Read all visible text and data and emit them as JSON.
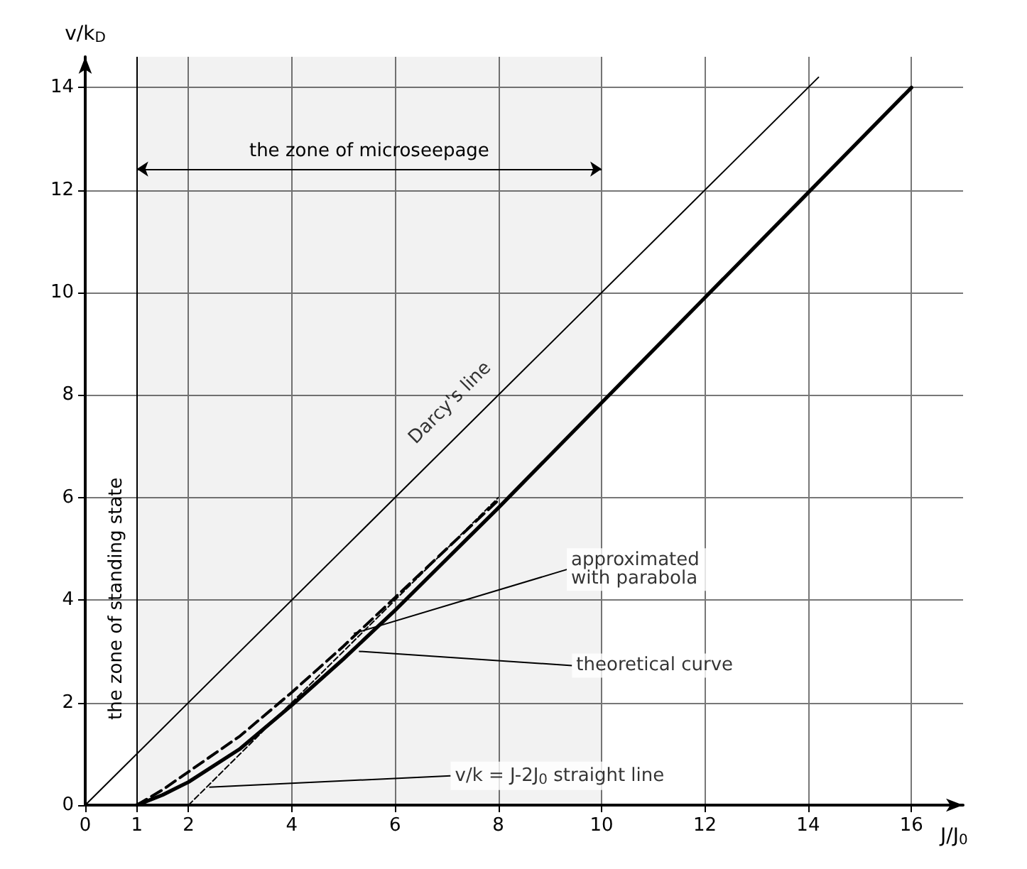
{
  "chart_data": {
    "type": "line",
    "xlabel": "J/J$_{0}$",
    "ylabel": "v/k$_{D}$",
    "xlim": [
      0,
      17
    ],
    "ylim": [
      0,
      14.6
    ],
    "xticks": [
      0,
      1,
      2,
      4,
      6,
      8,
      10,
      12,
      14,
      16
    ],
    "yticks": [
      0,
      2,
      4,
      6,
      8,
      10,
      12,
      14
    ],
    "grid": true,
    "marker": "none",
    "series": [
      {
        "color": "#000000",
        "line_style": "solid",
        "x": [
          0,
          14.2
        ],
        "values": [
          0,
          14.2
        ]
      },
      {
        "color": "#000000",
        "line_style": "dashed",
        "x": [
          2,
          3,
          4,
          5,
          6,
          7,
          8
        ],
        "values": [
          0,
          1,
          2,
          3,
          4,
          5,
          6
        ]
      },
      {
        "color": "#000000",
        "line_style": "solid",
        "x": [
          1,
          1.5,
          2,
          3,
          4,
          5,
          6,
          7,
          8,
          10,
          12,
          14,
          16
        ],
        "values": [
          0,
          0.2,
          0.45,
          1.1,
          1.95,
          2.85,
          3.8,
          4.8,
          5.8,
          7.85,
          9.9,
          11.95,
          14
        ]
      },
      {
        "color": "#000000",
        "line_style": "dashed",
        "x": [
          1,
          1.5,
          2,
          3,
          4,
          5,
          6,
          7,
          8
        ],
        "values": [
          0,
          0.3,
          0.65,
          1.35,
          2.2,
          3.1,
          4.05,
          5,
          5.95
        ]
      }
    ],
    "ref_lines": [
      {
        "axis": "x",
        "value": 1,
        "label": "the zone of standing state"
      }
    ],
    "bands": [
      {
        "axis": "x",
        "from": 1,
        "to": 10,
        "label": "the zone of microseepage"
      }
    ],
    "annotations": [
      {
        "text": "Darcy's line",
        "x": 8,
        "y": 8
      },
      {
        "text": "approximated with parabola",
        "x": 5.2,
        "y": 3.35
      },
      {
        "text": "theoretical curve",
        "x": 5.3,
        "y": 3.0
      },
      {
        "text": "v/k = J-2J$_{0}$ straight line",
        "x": 2.4,
        "y": 0.35
      }
    ]
  }
}
